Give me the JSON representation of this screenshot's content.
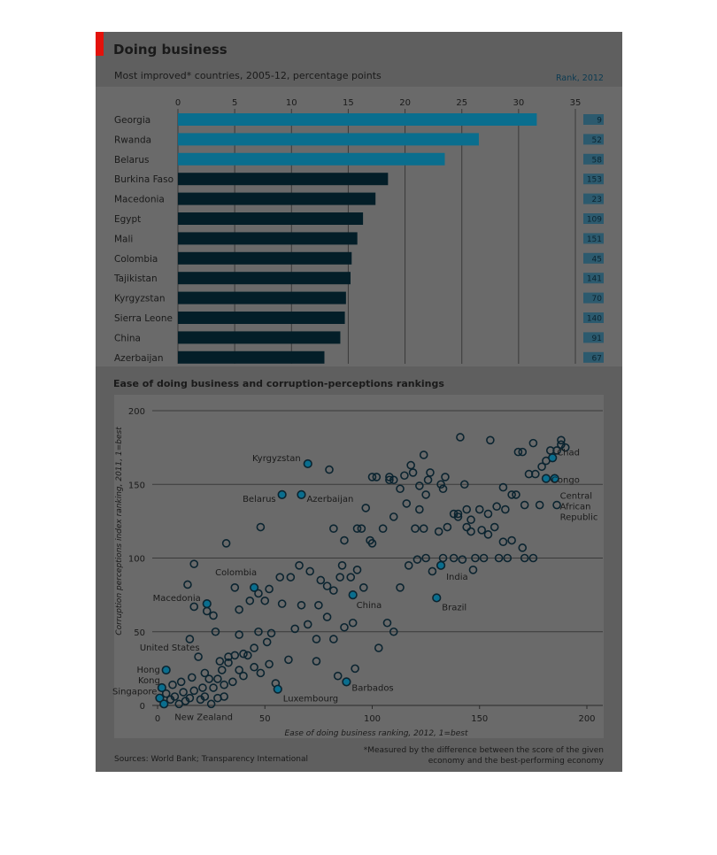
{
  "header": {
    "title": "Doing business",
    "subtitle": "Most improved* countries, 2005-12, percentage points",
    "rank_header": "Rank, 2012",
    "scatter_title": "Ease of doing business and corruption-perceptions rankings",
    "sources": "Sources: World Bank; Transparency International",
    "footnote": "*Measured by the difference between the score of the given economy and the best-performing economy"
  },
  "colors": {
    "accent": "#0a6e8e",
    "bar_dark": "#031e28",
    "rank_box": "#2c5a6e",
    "panel": "#5f5f5f",
    "logo_red": "#e3120b"
  },
  "chart_data": [
    {
      "type": "bar",
      "orientation": "horizontal",
      "title": "Most improved* countries, 2005-12, percentage points",
      "xlim": [
        0,
        35
      ],
      "xticks": [
        0,
        5,
        10,
        15,
        20,
        25,
        30,
        35
      ],
      "categories": [
        "Georgia",
        "Rwanda",
        "Belarus",
        "Burkina Faso",
        "Macedonia",
        "Egypt",
        "Mali",
        "Colombia",
        "Tajikistan",
        "Kyrgyzstan",
        "Sierra Leone",
        "China",
        "Azerbaijan"
      ],
      "values": [
        31.6,
        26.5,
        23.5,
        18.5,
        17.4,
        16.3,
        15.8,
        15.3,
        15.2,
        14.8,
        14.7,
        14.3,
        12.9
      ],
      "highlighted": [
        true,
        true,
        true,
        false,
        false,
        false,
        false,
        false,
        false,
        false,
        false,
        false,
        false
      ],
      "ranks_2012": [
        9,
        52,
        58,
        153,
        23,
        109,
        151,
        45,
        141,
        70,
        140,
        91,
        67
      ]
    },
    {
      "type": "scatter",
      "title": "Ease of doing business and corruption-perceptions rankings",
      "xlabel": "Ease of doing business ranking, 2012, 1=best",
      "ylabel": "Corruption perceptions index ranking, 2011, 1=best",
      "xlim": [
        0,
        200
      ],
      "ylim": [
        0,
        200
      ],
      "xticks": [
        0,
        50,
        100,
        150,
        200
      ],
      "yticks": [
        0,
        50,
        100,
        150,
        200
      ],
      "grid": true,
      "labeled_points": [
        {
          "label": "Kyrgyzstan",
          "x": 70,
          "y": 164
        },
        {
          "label": "Belarus",
          "x": 58,
          "y": 143
        },
        {
          "label": "Azerbaijan",
          "x": 67,
          "y": 143
        },
        {
          "label": "Chad",
          "x": 184,
          "y": 168
        },
        {
          "label": "Congo",
          "x": 181,
          "y": 154
        },
        {
          "label": "Central African Republic",
          "x": 185,
          "y": 154
        },
        {
          "label": "Colombia",
          "x": 45,
          "y": 80
        },
        {
          "label": "Macedonia",
          "x": 23,
          "y": 69
        },
        {
          "label": "India",
          "x": 132,
          "y": 95
        },
        {
          "label": "China",
          "x": 91,
          "y": 75
        },
        {
          "label": "Brazil",
          "x": 130,
          "y": 73
        },
        {
          "label": "United States",
          "x": 4,
          "y": 24
        },
        {
          "label": "Hong Kong",
          "x": 2,
          "y": 12
        },
        {
          "label": "Singapore",
          "x": 1,
          "y": 5
        },
        {
          "label": "Luxembourg",
          "x": 56,
          "y": 11
        },
        {
          "label": "Barbados",
          "x": 88,
          "y": 16
        },
        {
          "label": "New Zealand",
          "x": 3,
          "y": 1
        }
      ],
      "points": [
        [
          10,
          1
        ],
        [
          13,
          3
        ],
        [
          6,
          4
        ],
        [
          8,
          6
        ],
        [
          15,
          5
        ],
        [
          4,
          8
        ],
        [
          12,
          9
        ],
        [
          17,
          10
        ],
        [
          21,
          12
        ],
        [
          26,
          12
        ],
        [
          31,
          14
        ],
        [
          35,
          16
        ],
        [
          40,
          20
        ],
        [
          28,
          18
        ],
        [
          11,
          16
        ],
        [
          7,
          14
        ],
        [
          16,
          19
        ],
        [
          22,
          22
        ],
        [
          30,
          24
        ],
        [
          38,
          24
        ],
        [
          45,
          26
        ],
        [
          52,
          28
        ],
        [
          61,
          31
        ],
        [
          74,
          30
        ],
        [
          84,
          20
        ],
        [
          92,
          25
        ],
        [
          29,
          30
        ],
        [
          33,
          33
        ],
        [
          36,
          34
        ],
        [
          40,
          35
        ],
        [
          45,
          39
        ],
        [
          51,
          43
        ],
        [
          19,
          33
        ],
        [
          15,
          45
        ],
        [
          27,
          50
        ],
        [
          38,
          48
        ],
        [
          47,
          50
        ],
        [
          53,
          49
        ],
        [
          64,
          52
        ],
        [
          70,
          55
        ],
        [
          74,
          45
        ],
        [
          82,
          45
        ],
        [
          87,
          53
        ],
        [
          91,
          56
        ],
        [
          79,
          60
        ],
        [
          75,
          68
        ],
        [
          67,
          68
        ],
        [
          58,
          69
        ],
        [
          50,
          71
        ],
        [
          43,
          71
        ],
        [
          38,
          65
        ],
        [
          26,
          61
        ],
        [
          23,
          64
        ],
        [
          17,
          67
        ],
        [
          14,
          82
        ],
        [
          36,
          80
        ],
        [
          47,
          76
        ],
        [
          52,
          79
        ],
        [
          57,
          87
        ],
        [
          62,
          87
        ],
        [
          66,
          95
        ],
        [
          71,
          91
        ],
        [
          76,
          85
        ],
        [
          79,
          81
        ],
        [
          82,
          78
        ],
        [
          85,
          87
        ],
        [
          86,
          95
        ],
        [
          90,
          87
        ],
        [
          93,
          92
        ],
        [
          96,
          80
        ],
        [
          103,
          39
        ],
        [
          107,
          56
        ],
        [
          110,
          50
        ],
        [
          113,
          80
        ],
        [
          117,
          95
        ],
        [
          121,
          99
        ],
        [
          125,
          100
        ],
        [
          128,
          91
        ],
        [
          133,
          100
        ],
        [
          138,
          100
        ],
        [
          142,
          99
        ],
        [
          147,
          92
        ],
        [
          152,
          100
        ],
        [
          159,
          100
        ],
        [
          163,
          100
        ],
        [
          171,
          100
        ],
        [
          175,
          100
        ],
        [
          120,
          120
        ],
        [
          124,
          120
        ],
        [
          131,
          118
        ],
        [
          135,
          121
        ],
        [
          140,
          128
        ],
        [
          144,
          121
        ],
        [
          146,
          126
        ],
        [
          151,
          119
        ],
        [
          154,
          116
        ],
        [
          157,
          121
        ],
        [
          161,
          111
        ],
        [
          165,
          112
        ],
        [
          170,
          107
        ],
        [
          126,
          153
        ],
        [
          132,
          150
        ],
        [
          140,
          130
        ],
        [
          144,
          133
        ],
        [
          150,
          133
        ],
        [
          158,
          135
        ],
        [
          162,
          133
        ],
        [
          171,
          136
        ],
        [
          178,
          136
        ],
        [
          186,
          136
        ],
        [
          116,
          137
        ],
        [
          122,
          133
        ],
        [
          110,
          128
        ],
        [
          105,
          120
        ],
        [
          100,
          110
        ],
        [
          99,
          112
        ],
        [
          93,
          120
        ],
        [
          95,
          120
        ],
        [
          97,
          134
        ],
        [
          87,
          112
        ],
        [
          82,
          120
        ],
        [
          108,
          153
        ],
        [
          110,
          153
        ],
        [
          115,
          156
        ],
        [
          119,
          158
        ],
        [
          127,
          158
        ],
        [
          133,
          147
        ],
        [
          138,
          130
        ],
        [
          146,
          118
        ],
        [
          148,
          100
        ],
        [
          154,
          130
        ],
        [
          161,
          148
        ],
        [
          165,
          143
        ],
        [
          167,
          143
        ],
        [
          173,
          157
        ],
        [
          176,
          157
        ],
        [
          179,
          162
        ],
        [
          181,
          166
        ],
        [
          186,
          173
        ],
        [
          188,
          177
        ],
        [
          190,
          175
        ],
        [
          183,
          173
        ],
        [
          188,
          180
        ],
        [
          175,
          178
        ],
        [
          170,
          172
        ],
        [
          168,
          172
        ],
        [
          155,
          180
        ],
        [
          141,
          182
        ],
        [
          124,
          170
        ],
        [
          118,
          163
        ],
        [
          100,
          155
        ],
        [
          102,
          155
        ],
        [
          108,
          155
        ],
        [
          113,
          147
        ],
        [
          125,
          143
        ],
        [
          20,
          4
        ],
        [
          22,
          6
        ],
        [
          25,
          1
        ],
        [
          24,
          18
        ],
        [
          33,
          29
        ],
        [
          42,
          34
        ],
        [
          48,
          22
        ],
        [
          55,
          15
        ],
        [
          17,
          96
        ],
        [
          48,
          121
        ],
        [
          32,
          110
        ],
        [
          80,
          160
        ],
        [
          122,
          149
        ],
        [
          134,
          155
        ],
        [
          143,
          150
        ],
        [
          28,
          5
        ],
        [
          31,
          6
        ]
      ]
    }
  ]
}
